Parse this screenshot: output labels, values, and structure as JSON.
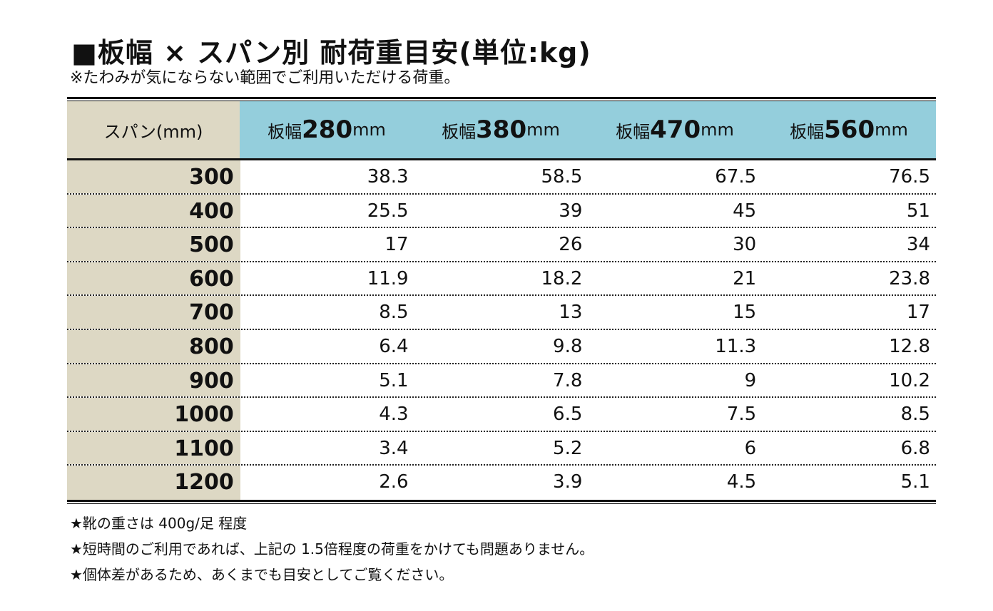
{
  "title": "■板幅 × スパン別 耐荷重目安(単位:kg)",
  "subtitle": "※たわみが気にならない範囲でご利用いただける荷重。",
  "table": {
    "span_header": "スパン(mm)",
    "columns": [
      {
        "prefix": "板幅",
        "num": "280",
        "unit": "mm"
      },
      {
        "prefix": "板幅",
        "num": "380",
        "unit": "mm"
      },
      {
        "prefix": "板幅",
        "num": "470",
        "unit": "mm"
      },
      {
        "prefix": "板幅",
        "num": "560",
        "unit": "mm"
      }
    ],
    "rows": [
      {
        "span": "300",
        "values": [
          "38.3",
          "58.5",
          "67.5",
          "76.5"
        ]
      },
      {
        "span": "400",
        "values": [
          "25.5",
          "39",
          "45",
          "51"
        ]
      },
      {
        "span": "500",
        "values": [
          "17",
          "26",
          "30",
          "34"
        ]
      },
      {
        "span": "600",
        "values": [
          "11.9",
          "18.2",
          "21",
          "23.8"
        ]
      },
      {
        "span": "700",
        "values": [
          "8.5",
          "13",
          "15",
          "17"
        ]
      },
      {
        "span": "800",
        "values": [
          "6.4",
          "9.8",
          "11.3",
          "12.8"
        ]
      },
      {
        "span": "900",
        "values": [
          "5.1",
          "7.8",
          "9",
          "10.2"
        ]
      },
      {
        "span": "1000",
        "values": [
          "4.3",
          "6.5",
          "7.5",
          "8.5"
        ]
      },
      {
        "span": "1100",
        "values": [
          "3.4",
          "5.2",
          "6",
          "6.8"
        ]
      },
      {
        "span": "1200",
        "values": [
          "2.6",
          "3.9",
          "4.5",
          "5.1"
        ]
      }
    ]
  },
  "notes": [
    "★靴の重さは 400g/足 程度",
    "★短時間のご利用であれば、上記の 1.5倍程度の荷重をかけても問題ありません。",
    "★個体差があるため、あくまでも目安としてご覧ください。"
  ],
  "colors": {
    "span_column_bg": "#ddd8c4",
    "header_bg": "#94cedc"
  }
}
